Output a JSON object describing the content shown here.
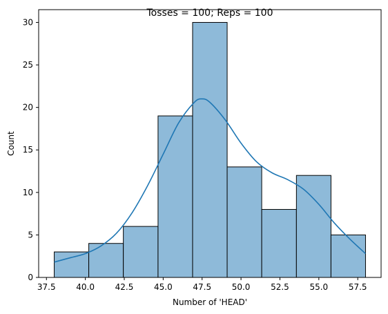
{
  "chart_data": {
    "type": "bar",
    "title": "Tosses = 100; Reps = 100",
    "xlabel": "Number of 'HEAD'",
    "ylabel": "Count",
    "xlim": [
      37.0,
      59.0
    ],
    "ylim": [
      0,
      31.5
    ],
    "xticks": [
      37.5,
      40.0,
      42.5,
      45.0,
      47.5,
      50.0,
      52.5,
      55.0,
      57.5
    ],
    "xtick_labels": [
      "37.5",
      "40.0",
      "42.5",
      "45.0",
      "47.5",
      "50.0",
      "52.5",
      "55.0",
      "57.5"
    ],
    "yticks": [
      0,
      5,
      10,
      15,
      20,
      25,
      30
    ],
    "ytick_labels": [
      "0",
      "5",
      "10",
      "15",
      "20",
      "25",
      "30"
    ],
    "bins": [
      {
        "start": 38.0,
        "end": 40.22,
        "count": 3
      },
      {
        "start": 40.22,
        "end": 42.44,
        "count": 4
      },
      {
        "start": 42.44,
        "end": 44.67,
        "count": 6
      },
      {
        "start": 44.67,
        "end": 46.89,
        "count": 19
      },
      {
        "start": 46.89,
        "end": 49.11,
        "count": 30
      },
      {
        "start": 49.11,
        "end": 51.33,
        "count": 13
      },
      {
        "start": 51.33,
        "end": 53.56,
        "count": 8
      },
      {
        "start": 53.56,
        "end": 55.78,
        "count": 12
      },
      {
        "start": 55.78,
        "end": 58.0,
        "count": 5
      }
    ],
    "kde": {
      "x": [
        38.0,
        39.0,
        40.0,
        41.0,
        42.0,
        43.0,
        44.0,
        45.0,
        46.0,
        47.0,
        47.5,
        48.0,
        49.0,
        50.0,
        51.0,
        52.0,
        53.0,
        54.0,
        55.0,
        56.0,
        57.0,
        58.0
      ],
      "y": [
        1.8,
        2.3,
        2.8,
        3.7,
        5.2,
        7.6,
        10.8,
        14.5,
        18.2,
        20.6,
        21.0,
        20.6,
        18.5,
        15.8,
        13.6,
        12.3,
        11.5,
        10.4,
        8.6,
        6.4,
        4.5,
        2.8
      ]
    },
    "grid": false,
    "colors": {
      "bar_fill": "#8ebad9",
      "bar_edge": "#000000",
      "kde_line": "#1f77b4"
    }
  }
}
